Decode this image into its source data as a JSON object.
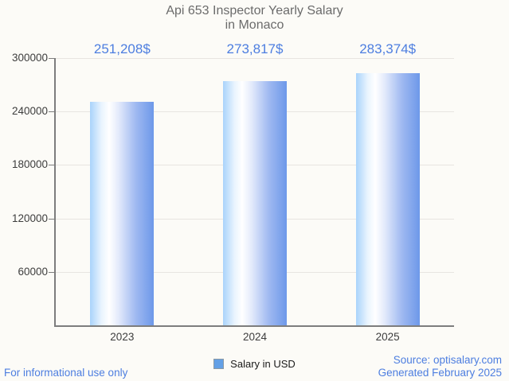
{
  "title": {
    "line1": "Api 653 Inspector Yearly Salary",
    "line2": "in Monaco"
  },
  "chart_data": {
    "type": "bar",
    "title": "Api 653 Inspector Yearly Salary in Monaco",
    "categories": [
      "2023",
      "2024",
      "2025"
    ],
    "values": [
      251208,
      273817,
      283374
    ],
    "value_labels": [
      "251,208$",
      "273,817$",
      "283,374$"
    ],
    "series": [
      {
        "name": "Salary in USD",
        "values": [
          251208,
          273817,
          283374
        ]
      }
    ],
    "xlabel": "",
    "ylabel": "",
    "ylim": [
      0,
      300000
    ],
    "yticks": [
      60000,
      120000,
      180000,
      240000,
      300000
    ],
    "ytick_labels": [
      "60000",
      "120000",
      "180000",
      "240000",
      "300000"
    ],
    "grid": "horizontal",
    "legend": {
      "label": "Salary in USD",
      "position": "bottom-center"
    }
  },
  "footer": {
    "left": "For informational use only",
    "source": "Source: optisalary.com",
    "generated": "Generated February 2025"
  },
  "colors": {
    "background": "#fcfbf7",
    "title_text": "#6b6b6b",
    "axis": "#7d7d7d",
    "gridline": "#e8e5e1",
    "tick_text": "#3d3d3d",
    "accent_blue": "#4d7ee0",
    "bar_gradient": [
      "#a9d3fb",
      "#ffffff",
      "#6d98e9"
    ],
    "legend_marker_fill": "#63a0e6",
    "legend_marker_border": "#8c9aa5"
  }
}
